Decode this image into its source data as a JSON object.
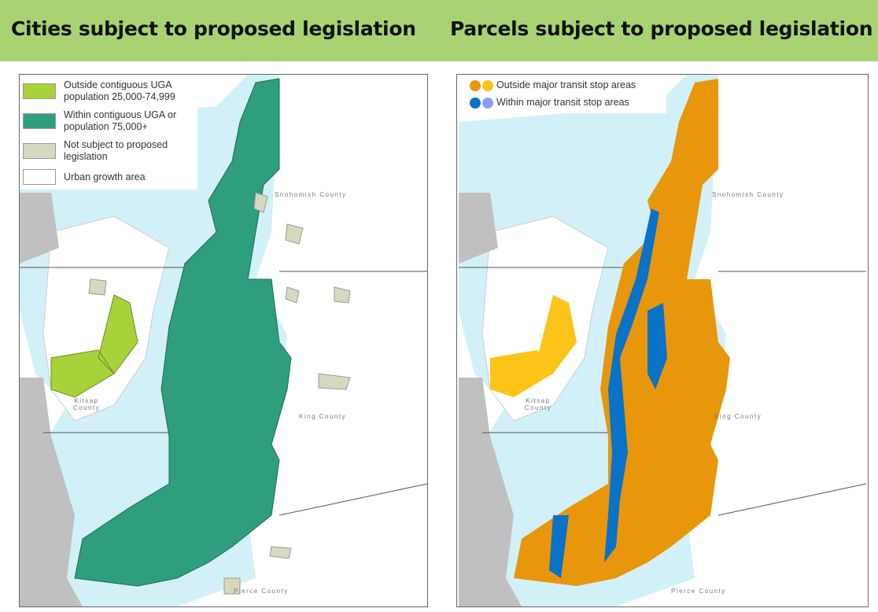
{
  "header": {
    "left_title": "Cities subject to proposed legislation",
    "right_title": "Parcels subject to proposed legislation"
  },
  "left_map": {
    "legend": [
      {
        "label": "Outside contiguous UGA population 25,000-74,999",
        "color": "#a8d23a"
      },
      {
        "label": "Within contiguous UGA  or population 75,000+",
        "color": "#2e9e7c"
      },
      {
        "label": "Not subject to proposed legislation",
        "color": "#d6d9bf"
      },
      {
        "label": "Urban growth area",
        "color": "#ffffff"
      }
    ]
  },
  "right_map": {
    "legend": [
      {
        "label": "Outside major transit stop areas",
        "colors": [
          "#e8960c",
          "#fcc419"
        ]
      },
      {
        "label": "Within major transit stop areas",
        "colors": [
          "#0a72c7",
          "#8f9cf6"
        ]
      }
    ]
  },
  "counties": {
    "snohomish": "Snohomish County",
    "king": "King County",
    "kitsap": "Kitsap County",
    "pierce": "Pierce County"
  },
  "colors": {
    "water": "#d2f0f7",
    "outside_land": "#c0c0c0",
    "header_band": "#a9d372"
  }
}
